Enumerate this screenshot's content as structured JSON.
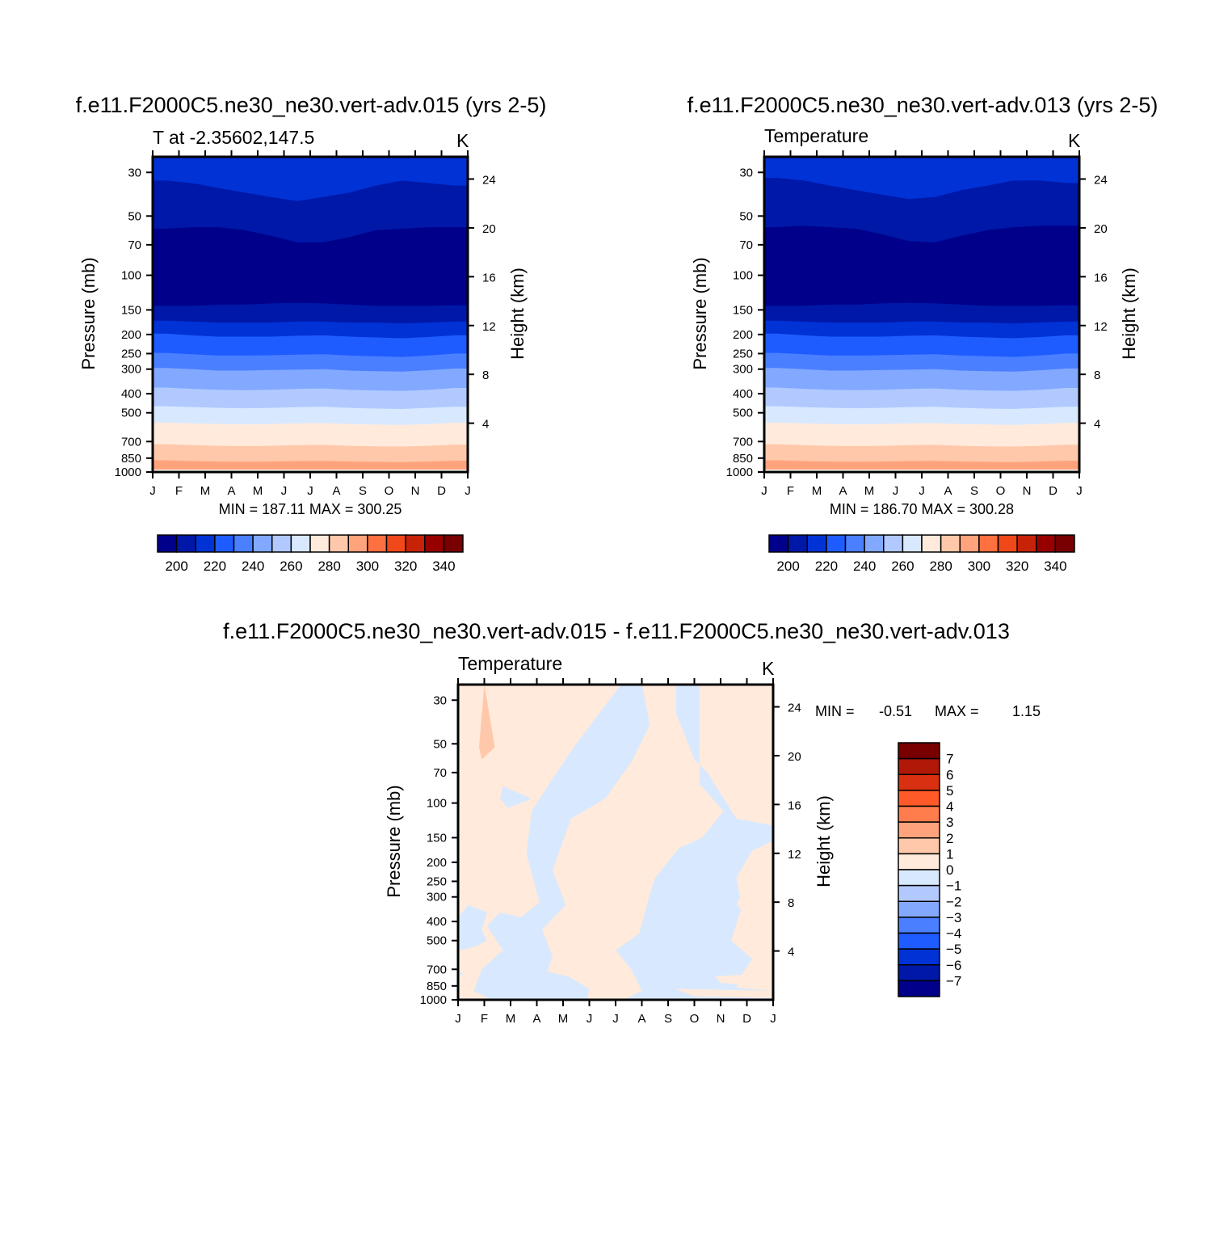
{
  "colors": {
    "levels": [
      "#00008a",
      "#0018a8",
      "#0032d6",
      "#1e5cff",
      "#4a7fff",
      "#82a9ff",
      "#b1c9ff",
      "#d8e9ff",
      "#ffeadb",
      "#ffc8aa",
      "#ffa37c",
      "#ff7040",
      "#f04818",
      "#c82208",
      "#980000",
      "#780000"
    ],
    "diff_levels": [
      "#780000",
      "#b01808",
      "#d83010",
      "#ff5a28",
      "#ff7c4c",
      "#ffa37c",
      "#ffc8aa",
      "#ffeadb",
      "#d8e9ff",
      "#b1c9ff",
      "#82a9ff",
      "#4a7fff",
      "#1e5cff",
      "#0032d6",
      "#0018a8",
      "#00008a"
    ]
  },
  "chart_data": [
    {
      "type": "heatmap",
      "title": "f.e11.F2000C5.ne30_ne30.vert-adv.015 (yrs 2-5)",
      "left_subtitle": "T at -2.35602,147.5",
      "units": "K",
      "ylabel": "Pressure (mb)",
      "ylabel2": "Height (km)",
      "x_ticks": [
        "J",
        "F",
        "M",
        "A",
        "M",
        "J",
        "J",
        "A",
        "S",
        "O",
        "N",
        "D",
        "J"
      ],
      "y_ticks": [
        30,
        50,
        70,
        100,
        150,
        200,
        250,
        300,
        400,
        500,
        700,
        850,
        1000
      ],
      "y2_ticks": [
        24,
        20,
        16,
        12,
        8,
        4
      ],
      "stats": "MIN = 187.11 MAX = 300.25",
      "colorbar_ticks": [
        200,
        220,
        240,
        260,
        280,
        300,
        320,
        340
      ],
      "layers": [
        {
          "level": 2,
          "top_p": [
            33,
            34,
            36,
            38,
            40,
            42,
            40,
            38,
            35,
            33,
            34,
            35
          ]
        },
        {
          "level": 1,
          "top_p": [
            12,
            12,
            12,
            12,
            12,
            12,
            12,
            12,
            12,
            12,
            12,
            12
          ]
        },
        {
          "level": 0,
          "top_p": [
            58,
            57,
            57,
            59,
            63,
            68,
            68,
            64,
            59,
            58,
            57,
            57
          ]
        },
        {
          "level": 1,
          "top_p": [
            143,
            143,
            141,
            141,
            139,
            138,
            139,
            141,
            143,
            143,
            143,
            142
          ]
        },
        {
          "level": 2,
          "top_p": [
            170,
            172,
            174,
            174,
            174,
            172,
            172,
            174,
            174,
            176,
            174,
            172
          ]
        },
        {
          "level": 3,
          "top_p": [
            198,
            202,
            205,
            205,
            205,
            203,
            202,
            205,
            207,
            209,
            206,
            202
          ]
        },
        {
          "level": 4,
          "top_p": [
            248,
            252,
            256,
            256,
            255,
            253,
            252,
            256,
            258,
            260,
            256,
            250
          ]
        },
        {
          "level": 5,
          "top_p": [
            296,
            300,
            305,
            305,
            303,
            302,
            300,
            305,
            307,
            309,
            304,
            298
          ]
        },
        {
          "level": 6,
          "top_p": [
            372,
            378,
            382,
            384,
            382,
            378,
            376,
            382,
            385,
            387,
            382,
            374
          ]
        },
        {
          "level": 7,
          "top_p": [
            463,
            468,
            472,
            474,
            472,
            468,
            466,
            472,
            476,
            478,
            472,
            466
          ]
        },
        {
          "level": 8,
          "top_p": [
            560,
            566,
            570,
            572,
            570,
            566,
            564,
            570,
            574,
            576,
            570,
            562
          ]
        },
        {
          "level": 9,
          "top_p": [
            722,
            730,
            736,
            738,
            736,
            730,
            728,
            736,
            740,
            742,
            736,
            726
          ]
        },
        {
          "level": 10,
          "top_p": [
            872,
            880,
            884,
            886,
            884,
            880,
            878,
            884,
            888,
            890,
            884,
            876
          ]
        },
        {
          "level": 11,
          "top_p": [
            985,
            986,
            988,
            988,
            987,
            986,
            986,
            988,
            989,
            990,
            988,
            986
          ]
        }
      ]
    },
    {
      "type": "heatmap",
      "title": "f.e11.F2000C5.ne30_ne30.vert-adv.013 (yrs 2-5)",
      "left_subtitle": "Temperature",
      "units": "K",
      "ylabel": "Pressure (mb)",
      "ylabel2": "Height (km)",
      "x_ticks": [
        "J",
        "F",
        "M",
        "A",
        "M",
        "J",
        "J",
        "A",
        "S",
        "O",
        "N",
        "D",
        "J"
      ],
      "y_ticks": [
        30,
        50,
        70,
        100,
        150,
        200,
        250,
        300,
        400,
        500,
        700,
        850,
        1000
      ],
      "y2_ticks": [
        24,
        20,
        16,
        12,
        8,
        4
      ],
      "stats": "MIN = 186.70 MAX = 300.28",
      "colorbar_ticks": [
        200,
        220,
        240,
        260,
        280,
        300,
        320,
        340
      ],
      "layers": [
        {
          "level": 2,
          "top_p": [
            32,
            33,
            35,
            37,
            39,
            41,
            40,
            37,
            35,
            33,
            33,
            34
          ]
        },
        {
          "level": 1,
          "top_p": [
            12,
            12,
            12,
            12,
            12,
            12,
            12,
            12,
            12,
            12,
            12,
            12
          ]
        },
        {
          "level": 0,
          "top_p": [
            57,
            56,
            57,
            58,
            62,
            67,
            68,
            63,
            59,
            57,
            56,
            56
          ]
        },
        {
          "level": 1,
          "top_p": [
            143,
            143,
            141,
            141,
            139,
            138,
            139,
            141,
            143,
            143,
            143,
            142
          ]
        },
        {
          "level": 2,
          "top_p": [
            170,
            172,
            174,
            174,
            174,
            172,
            172,
            174,
            174,
            176,
            174,
            172
          ]
        },
        {
          "level": 3,
          "top_p": [
            198,
            202,
            205,
            205,
            205,
            203,
            202,
            205,
            207,
            209,
            206,
            202
          ]
        },
        {
          "level": 4,
          "top_p": [
            248,
            252,
            256,
            256,
            255,
            253,
            252,
            256,
            258,
            260,
            256,
            250
          ]
        },
        {
          "level": 5,
          "top_p": [
            296,
            300,
            305,
            305,
            303,
            302,
            300,
            305,
            307,
            309,
            304,
            298
          ]
        },
        {
          "level": 6,
          "top_p": [
            372,
            378,
            382,
            384,
            382,
            378,
            376,
            382,
            385,
            387,
            382,
            374
          ]
        },
        {
          "level": 7,
          "top_p": [
            463,
            468,
            472,
            474,
            472,
            468,
            466,
            472,
            476,
            478,
            472,
            466
          ]
        },
        {
          "level": 8,
          "top_p": [
            560,
            566,
            570,
            572,
            570,
            566,
            564,
            570,
            574,
            576,
            570,
            562
          ]
        },
        {
          "level": 9,
          "top_p": [
            722,
            730,
            736,
            738,
            736,
            730,
            728,
            736,
            740,
            742,
            736,
            726
          ]
        },
        {
          "level": 10,
          "top_p": [
            872,
            880,
            884,
            886,
            884,
            880,
            878,
            884,
            888,
            890,
            884,
            876
          ]
        },
        {
          "level": 11,
          "top_p": [
            985,
            986,
            988,
            988,
            987,
            986,
            986,
            988,
            989,
            990,
            988,
            986
          ]
        }
      ]
    },
    {
      "type": "heatmap",
      "title": "f.e11.F2000C5.ne30_ne30.vert-adv.015 - f.e11.F2000C5.ne30_ne30.vert-adv.013",
      "left_subtitle": "Temperature",
      "units": "K",
      "ylabel": "Pressure (mb)",
      "ylabel2": "Height (km)",
      "x_ticks": [
        "J",
        "F",
        "M",
        "A",
        "M",
        "J",
        "J",
        "A",
        "S",
        "O",
        "N",
        "D",
        "J"
      ],
      "y_ticks": [
        30,
        50,
        70,
        100,
        150,
        200,
        250,
        300,
        400,
        500,
        700,
        850,
        1000
      ],
      "y2_ticks": [
        24,
        20,
        16,
        12,
        8,
        4
      ],
      "stats_min_label": "MIN =",
      "stats_min": "-0.51",
      "stats_max_label": "MAX =",
      "stats_max": "1.15",
      "colorbar_ticks": [
        7,
        6,
        5,
        4,
        3,
        2,
        1,
        0,
        -1,
        -2,
        -3,
        -4,
        -5,
        -6,
        -7
      ],
      "background_sign": "positive",
      "negative_regions": [
        [
          [
            3.8,
            25
          ],
          [
            6.2,
            25
          ],
          [
            4.5,
            50
          ],
          [
            3.6,
            75
          ],
          [
            2.8,
            110
          ],
          [
            2.6,
            180
          ],
          [
            3.1,
            320
          ],
          [
            2.4,
            380
          ],
          [
            1.6,
            360
          ],
          [
            1.1,
            420
          ],
          [
            1.7,
            560
          ],
          [
            0.9,
            700
          ],
          [
            0.6,
            900
          ],
          [
            1.3,
            1000
          ],
          [
            4.9,
            1000
          ],
          [
            5.0,
            880
          ],
          [
            4.2,
            760
          ],
          [
            3.4,
            720
          ],
          [
            3.6,
            600
          ],
          [
            3.2,
            440
          ],
          [
            4.1,
            330
          ],
          [
            3.6,
            220
          ],
          [
            4.3,
            120
          ],
          [
            5.6,
            95
          ],
          [
            6.6,
            62
          ],
          [
            7.3,
            40
          ],
          [
            7.0,
            25
          ]
        ],
        [
          [
            8.3,
            25
          ],
          [
            9.2,
            25
          ],
          [
            9.2,
            80
          ],
          [
            10.1,
            110
          ],
          [
            9.3,
            150
          ],
          [
            8.4,
            170
          ],
          [
            7.5,
            240
          ],
          [
            7.3,
            290
          ],
          [
            6.9,
            460
          ],
          [
            6.0,
            560
          ],
          [
            6.6,
            700
          ],
          [
            7.0,
            900
          ],
          [
            6.3,
            1000
          ],
          [
            12,
            1000
          ],
          [
            12,
            900
          ],
          [
            10.6,
            870
          ],
          [
            10.7,
            780
          ],
          [
            11.2,
            620
          ],
          [
            10.4,
            500
          ],
          [
            10.8,
            340
          ],
          [
            10.6,
            240
          ],
          [
            11.2,
            175
          ],
          [
            12,
            155
          ],
          [
            12,
            130
          ],
          [
            10.6,
            120
          ],
          [
            9.5,
            70
          ],
          [
            9.0,
            60
          ],
          [
            8.3,
            35
          ]
        ],
        [
          [
            0,
            380
          ],
          [
            0.4,
            330
          ],
          [
            1.1,
            360
          ],
          [
            0.9,
            440
          ],
          [
            1.1,
            500
          ],
          [
            0.6,
            540
          ],
          [
            0,
            560
          ]
        ],
        [
          [
            0,
            700
          ],
          [
            0.2,
            740
          ],
          [
            0,
            760
          ]
        ],
        [
          [
            1.7,
            82
          ],
          [
            2.8,
            95
          ],
          [
            1.9,
            106
          ],
          [
            1.6,
            95
          ]
        ],
        [
          [
            8.8,
            330
          ],
          [
            9.3,
            320
          ],
          [
            9.5,
            370
          ],
          [
            9.1,
            390
          ]
        ]
      ],
      "positive_regions_in_negative": [
        [
          [
            1.0,
            25
          ],
          [
            1.4,
            52
          ],
          [
            0.9,
            60
          ],
          [
            0.8,
            52
          ]
        ],
        [
          [
            10.6,
            325
          ],
          [
            11.0,
            270
          ],
          [
            11.8,
            230
          ],
          [
            12,
            240
          ],
          [
            12,
            390
          ],
          [
            11.6,
            400
          ],
          [
            11.0,
            380
          ]
        ],
        [
          [
            10.8,
            500
          ],
          [
            11.5,
            460
          ],
          [
            11.9,
            540
          ],
          [
            11.0,
            560
          ]
        ],
        [
          [
            9.8,
            760
          ],
          [
            11.2,
            740
          ],
          [
            12,
            780
          ],
          [
            12,
            880
          ],
          [
            11.2,
            850
          ],
          [
            10.0,
            820
          ]
        ],
        [
          [
            8.3,
            880
          ],
          [
            12,
            900
          ],
          [
            12,
            980
          ],
          [
            9.0,
            960
          ]
        ],
        [
          [
            11.1,
            78
          ],
          [
            11.4,
            72
          ],
          [
            11.2,
            82
          ]
        ]
      ],
      "light_orange_regions": [
        [
          [
            1.0,
            25
          ],
          [
            1.4,
            52
          ],
          [
            0.9,
            60
          ],
          [
            0.8,
            52
          ]
        ]
      ]
    }
  ]
}
